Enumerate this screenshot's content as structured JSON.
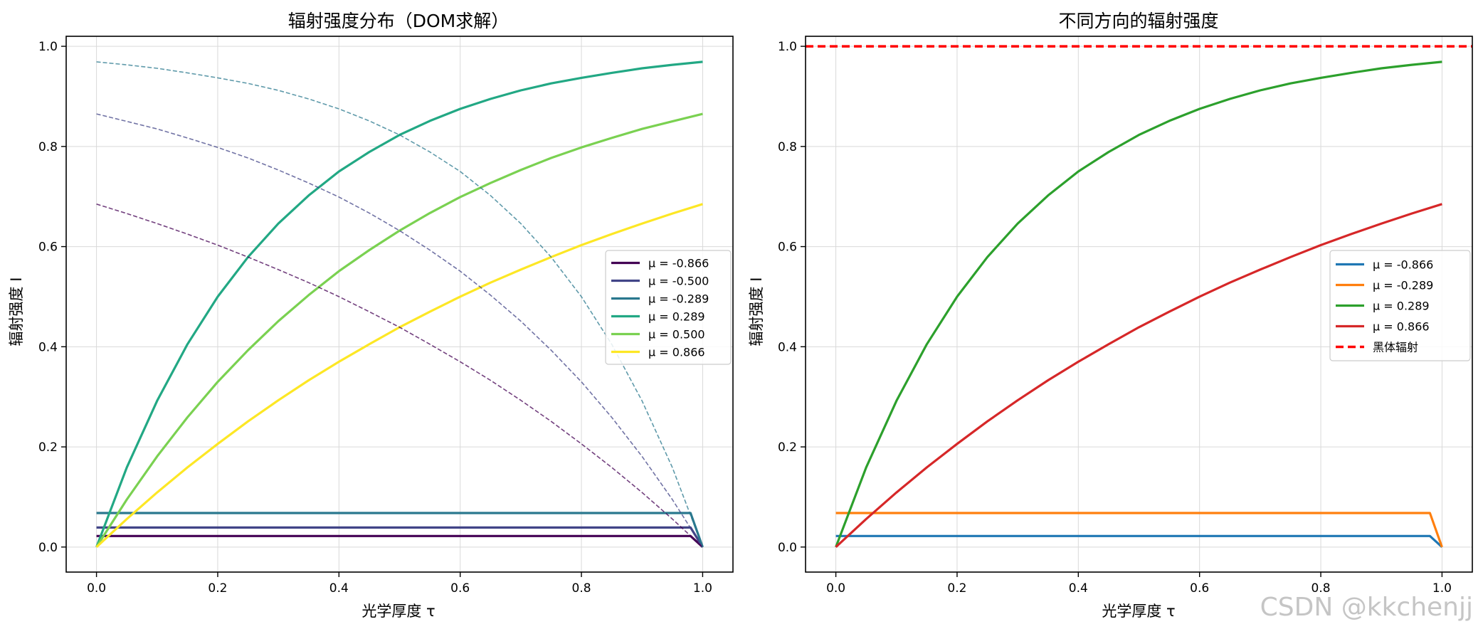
{
  "watermark": "CSDN @kkchenjj",
  "chart_data": [
    {
      "type": "line",
      "title": "辐射强度分布（DOM求解）",
      "xlabel": "光学厚度 τ",
      "ylabel": "辐射强度 I",
      "xlim": [
        -0.05,
        1.05
      ],
      "ylim": [
        -0.05,
        1.02
      ],
      "xticks": [
        0.0,
        0.2,
        0.4,
        0.6,
        0.8,
        1.0
      ],
      "xtick_labels": [
        "0.0",
        "0.2",
        "0.4",
        "0.6",
        "0.8",
        "1.0"
      ],
      "yticks": [
        0.0,
        0.2,
        0.4,
        0.6,
        0.8,
        1.0
      ],
      "ytick_labels": [
        "0.0",
        "0.2",
        "0.4",
        "0.6",
        "0.8",
        "1.0"
      ],
      "grid": true,
      "legend_position": "center-right",
      "series": [
        {
          "name": "μ = -0.866",
          "color": "#440154",
          "style": "solid",
          "x": [
            0.0,
            0.98,
            1.0
          ],
          "y": [
            0.022,
            0.022,
            0.0
          ]
        },
        {
          "name": "μ = -0.500",
          "color": "#414487",
          "style": "solid",
          "x": [
            0.0,
            0.98,
            1.0
          ],
          "y": [
            0.039,
            0.039,
            0.0
          ]
        },
        {
          "name": "μ = -0.289",
          "color": "#2a788e",
          "style": "solid",
          "x": [
            0.0,
            0.98,
            1.0
          ],
          "y": [
            0.068,
            0.068,
            0.0
          ]
        },
        {
          "name": "μ = 0.289",
          "color": "#22a884",
          "style": "solid",
          "x": [
            0.0,
            0.05,
            0.1,
            0.15,
            0.2,
            0.25,
            0.3,
            0.35,
            0.4,
            0.45,
            0.5,
            0.55,
            0.6,
            0.65,
            0.7,
            0.75,
            0.8,
            0.85,
            0.9,
            0.95,
            1.0
          ],
          "y": [
            0.0,
            0.159,
            0.292,
            0.405,
            0.5,
            0.579,
            0.646,
            0.702,
            0.75,
            0.789,
            0.823,
            0.851,
            0.875,
            0.895,
            0.912,
            0.926,
            0.937,
            0.947,
            0.956,
            0.963,
            0.969
          ]
        },
        {
          "name": "μ = 0.500",
          "color": "#7ad151",
          "style": "solid",
          "x": [
            0.0,
            0.05,
            0.1,
            0.15,
            0.2,
            0.25,
            0.3,
            0.35,
            0.4,
            0.45,
            0.5,
            0.55,
            0.6,
            0.65,
            0.7,
            0.75,
            0.8,
            0.85,
            0.9,
            0.95,
            1.0
          ],
          "y": [
            0.0,
            0.095,
            0.181,
            0.259,
            0.33,
            0.393,
            0.451,
            0.503,
            0.551,
            0.593,
            0.632,
            0.667,
            0.699,
            0.727,
            0.753,
            0.777,
            0.798,
            0.817,
            0.835,
            0.85,
            0.865
          ]
        },
        {
          "name": "μ = 0.866",
          "color": "#fde725",
          "style": "solid",
          "x": [
            0.0,
            0.05,
            0.1,
            0.15,
            0.2,
            0.25,
            0.3,
            0.35,
            0.4,
            0.45,
            0.5,
            0.55,
            0.6,
            0.65,
            0.7,
            0.75,
            0.8,
            0.85,
            0.9,
            0.95,
            1.0
          ],
          "y": [
            0.0,
            0.056,
            0.109,
            0.159,
            0.206,
            0.251,
            0.293,
            0.333,
            0.37,
            0.405,
            0.439,
            0.47,
            0.5,
            0.528,
            0.554,
            0.579,
            0.603,
            0.625,
            0.646,
            0.666,
            0.685
          ]
        },
        {
          "name": "",
          "color": "#2a788e",
          "style": "dashed",
          "x": [
            0.0,
            0.05,
            0.1,
            0.15,
            0.2,
            0.25,
            0.3,
            0.35,
            0.4,
            0.45,
            0.5,
            0.55,
            0.6,
            0.65,
            0.7,
            0.75,
            0.8,
            0.85,
            0.9,
            0.95,
            1.0
          ],
          "y": [
            0.969,
            0.963,
            0.956,
            0.947,
            0.937,
            0.926,
            0.912,
            0.895,
            0.875,
            0.851,
            0.823,
            0.789,
            0.75,
            0.702,
            0.646,
            0.579,
            0.5,
            0.405,
            0.292,
            0.159,
            0.0
          ]
        },
        {
          "name": "",
          "color": "#414487",
          "style": "dashed",
          "x": [
            0.0,
            0.05,
            0.1,
            0.15,
            0.2,
            0.25,
            0.3,
            0.35,
            0.4,
            0.45,
            0.5,
            0.55,
            0.6,
            0.65,
            0.7,
            0.75,
            0.8,
            0.85,
            0.9,
            0.95,
            1.0
          ],
          "y": [
            0.865,
            0.85,
            0.835,
            0.817,
            0.798,
            0.777,
            0.753,
            0.727,
            0.699,
            0.667,
            0.632,
            0.593,
            0.551,
            0.503,
            0.451,
            0.393,
            0.33,
            0.259,
            0.181,
            0.095,
            0.0
          ]
        },
        {
          "name": "",
          "color": "#440154",
          "style": "dashed",
          "x": [
            0.0,
            0.05,
            0.1,
            0.15,
            0.2,
            0.25,
            0.3,
            0.35,
            0.4,
            0.45,
            0.5,
            0.55,
            0.6,
            0.65,
            0.7,
            0.75,
            0.8,
            0.85,
            0.9,
            0.95,
            1.0
          ],
          "y": [
            0.685,
            0.666,
            0.646,
            0.625,
            0.603,
            0.579,
            0.554,
            0.528,
            0.5,
            0.47,
            0.439,
            0.405,
            0.37,
            0.333,
            0.293,
            0.251,
            0.206,
            0.159,
            0.109,
            0.056,
            0.0
          ]
        }
      ]
    },
    {
      "type": "line",
      "title": "不同方向的辐射强度",
      "xlabel": "光学厚度 τ",
      "ylabel": "辐射强度 I",
      "xlim": [
        -0.05,
        1.05
      ],
      "ylim": [
        -0.05,
        1.02
      ],
      "xticks": [
        0.0,
        0.2,
        0.4,
        0.6,
        0.8,
        1.0
      ],
      "xtick_labels": [
        "0.0",
        "0.2",
        "0.4",
        "0.6",
        "0.8",
        "1.0"
      ],
      "yticks": [
        0.0,
        0.2,
        0.4,
        0.6,
        0.8,
        1.0
      ],
      "ytick_labels": [
        "0.0",
        "0.2",
        "0.4",
        "0.6",
        "0.8",
        "1.0"
      ],
      "grid": true,
      "legend_position": "center-right",
      "series": [
        {
          "name": "μ = -0.866",
          "color": "#1f77b4",
          "style": "solid",
          "x": [
            0.0,
            0.98,
            1.0
          ],
          "y": [
            0.022,
            0.022,
            0.0
          ]
        },
        {
          "name": "μ = -0.289",
          "color": "#ff7f0e",
          "style": "solid",
          "x": [
            0.0,
            0.98,
            1.0
          ],
          "y": [
            0.068,
            0.068,
            0.0
          ]
        },
        {
          "name": "μ = 0.289",
          "color": "#2ca02c",
          "style": "solid",
          "x": [
            0.0,
            0.05,
            0.1,
            0.15,
            0.2,
            0.25,
            0.3,
            0.35,
            0.4,
            0.45,
            0.5,
            0.55,
            0.6,
            0.65,
            0.7,
            0.75,
            0.8,
            0.85,
            0.9,
            0.95,
            1.0
          ],
          "y": [
            0.0,
            0.159,
            0.292,
            0.405,
            0.5,
            0.579,
            0.646,
            0.702,
            0.75,
            0.789,
            0.823,
            0.851,
            0.875,
            0.895,
            0.912,
            0.926,
            0.937,
            0.947,
            0.956,
            0.963,
            0.969
          ]
        },
        {
          "name": "μ = 0.866",
          "color": "#d62728",
          "style": "solid",
          "x": [
            0.0,
            0.05,
            0.1,
            0.15,
            0.2,
            0.25,
            0.3,
            0.35,
            0.4,
            0.45,
            0.5,
            0.55,
            0.6,
            0.65,
            0.7,
            0.75,
            0.8,
            0.85,
            0.9,
            0.95,
            1.0
          ],
          "y": [
            0.0,
            0.056,
            0.109,
            0.159,
            0.206,
            0.251,
            0.293,
            0.333,
            0.37,
            0.405,
            0.439,
            0.47,
            0.5,
            0.528,
            0.554,
            0.579,
            0.603,
            0.625,
            0.646,
            0.666,
            0.685
          ]
        },
        {
          "name": "黑体辐射",
          "color": "#ff0000",
          "style": "dashed-thick",
          "x": [
            -0.05,
            1.05
          ],
          "y": [
            1.0,
            1.0
          ]
        }
      ]
    }
  ]
}
